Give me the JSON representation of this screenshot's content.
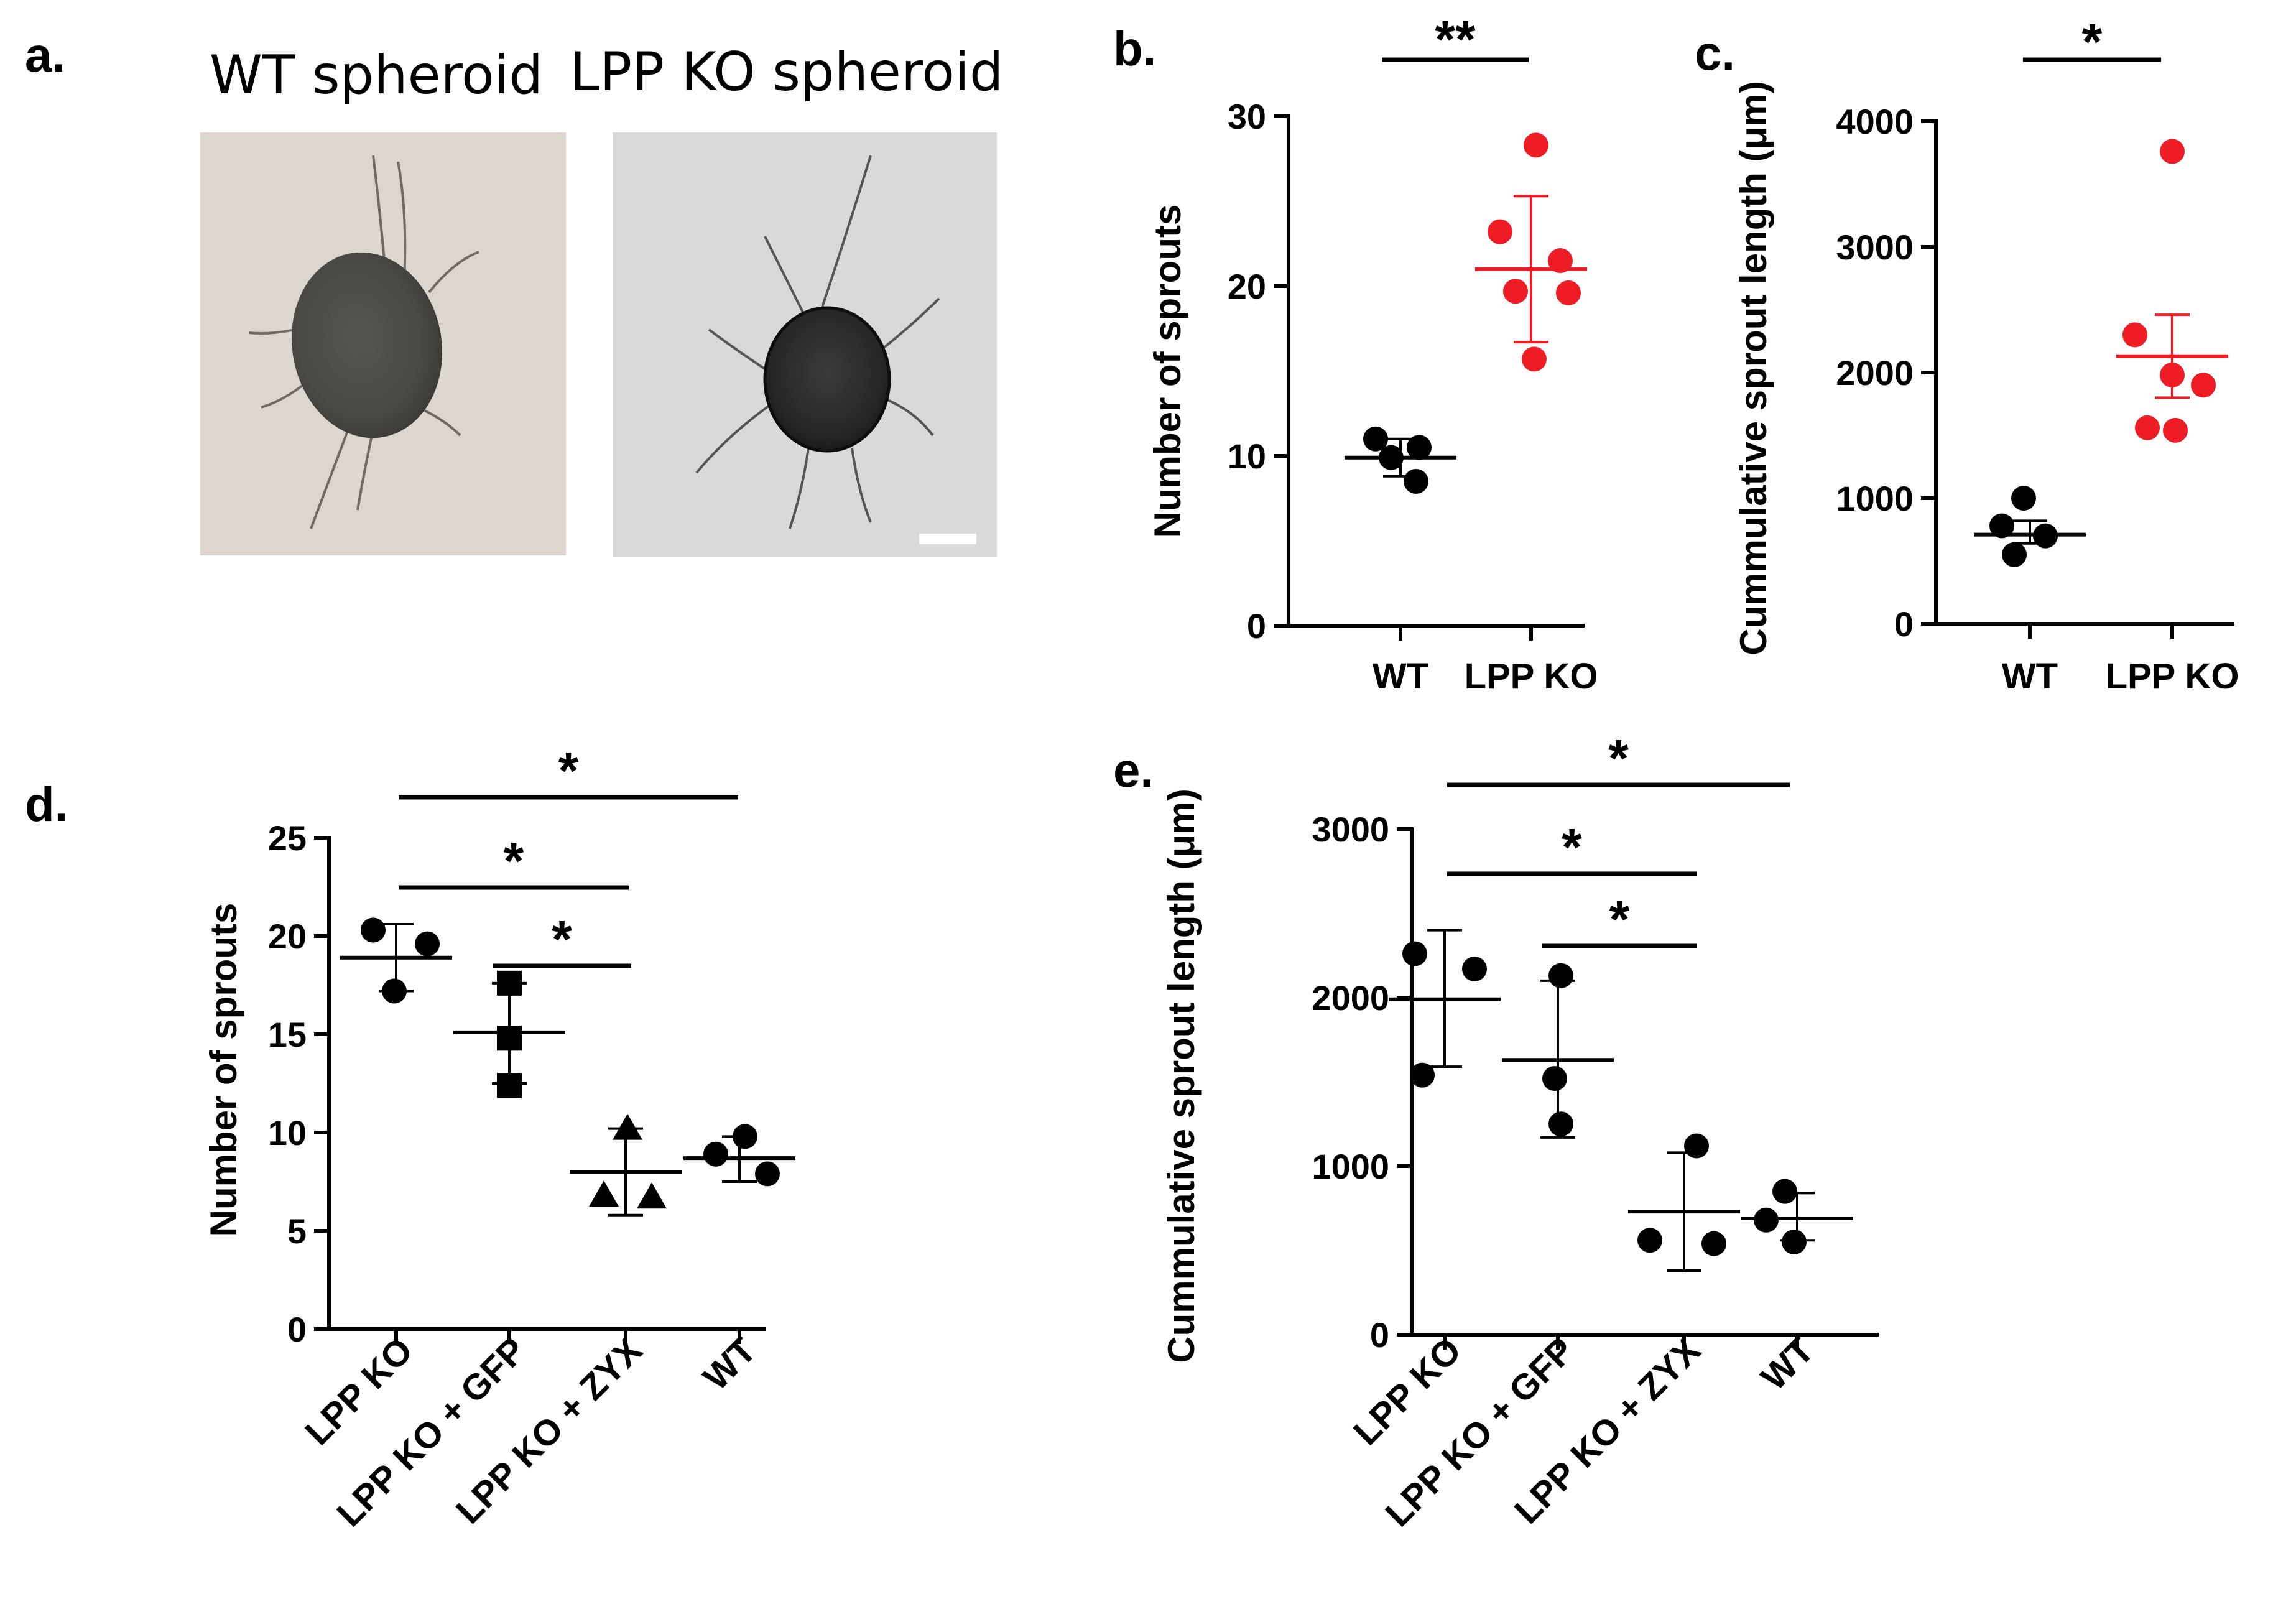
{
  "figure": {
    "panels": [
      {
        "letter": "a."
      },
      {
        "letter": "b."
      },
      {
        "letter": "c."
      },
      {
        "letter": "d."
      },
      {
        "letter": "e."
      }
    ],
    "images": {
      "wt_title": "WT spheroid",
      "ko_title": "LPP KO spheroid"
    }
  },
  "colors": {
    "black": "#000000",
    "red": "#ee1c25"
  },
  "chart_data": [
    {
      "id": "b",
      "type": "scatter",
      "ylabel": "Number of sprouts",
      "ylim": [
        0,
        30
      ],
      "yticks": [
        0,
        10,
        20,
        30
      ],
      "categories": [
        "WT",
        "LPP KO"
      ],
      "series": [
        {
          "category": "WT",
          "color": "#000000",
          "marker": "circle",
          "values": [
            11.0,
            10.5,
            9.9,
            8.5
          ],
          "mean": 9.9,
          "err": [
            8.8,
            11.0
          ]
        },
        {
          "category": "LPP KO",
          "color": "#ee1c25",
          "marker": "circle",
          "values": [
            28.3,
            23.2,
            21.5,
            19.7,
            19.6,
            15.7
          ],
          "mean": 21.0,
          "err": [
            16.7,
            25.3
          ]
        }
      ],
      "significance": [
        {
          "from": 0,
          "to": 1,
          "label": "**"
        }
      ]
    },
    {
      "id": "c",
      "type": "scatter",
      "ylabel": "Cummulative sprout length (μm)",
      "ylim": [
        0,
        4000
      ],
      "yticks": [
        0,
        1000,
        2000,
        3000,
        4000
      ],
      "categories": [
        "WT",
        "LPP KO"
      ],
      "series": [
        {
          "category": "WT",
          "color": "#000000",
          "marker": "circle",
          "values": [
            1000,
            780,
            700,
            550
          ],
          "mean": 710,
          "err": [
            640,
            820
          ]
        },
        {
          "category": "LPP KO",
          "color": "#ee1c25",
          "marker": "circle",
          "values": [
            3760,
            2300,
            1980,
            1900,
            1560,
            1540
          ],
          "mean": 2130,
          "err": [
            1800,
            2460
          ]
        }
      ],
      "significance": [
        {
          "from": 0,
          "to": 1,
          "label": "*"
        }
      ]
    },
    {
      "id": "d",
      "type": "scatter",
      "ylabel": "Number of sprouts",
      "ylim": [
        0,
        25
      ],
      "yticks": [
        0,
        5,
        10,
        15,
        20,
        25
      ],
      "categories": [
        "LPP KO",
        "LPP KO + GFP",
        "LPP KO + ZYX",
        "WT"
      ],
      "series": [
        {
          "category": "LPP KO",
          "color": "#000000",
          "marker": "circle",
          "values": [
            20.3,
            19.6,
            17.2
          ],
          "mean": 18.9,
          "err": [
            17.2,
            20.6
          ]
        },
        {
          "category": "LPP KO + GFP",
          "color": "#000000",
          "marker": "square",
          "values": [
            17.6,
            14.8,
            12.4
          ],
          "mean": 15.1,
          "err": [
            12.5,
            17.6
          ]
        },
        {
          "category": "LPP KO + ZYX",
          "color": "#000000",
          "marker": "triangle",
          "values": [
            10.2,
            6.8,
            6.7
          ],
          "mean": 8.0,
          "err": [
            5.8,
            10.2
          ]
        },
        {
          "category": "WT",
          "color": "#000000",
          "marker": "circle",
          "values": [
            9.8,
            8.9,
            7.9
          ],
          "mean": 8.7,
          "err": [
            7.5,
            9.8
          ]
        }
      ],
      "significance": [
        {
          "from": 0,
          "to": 3,
          "label": "*"
        },
        {
          "from": 0,
          "to": 2,
          "label": "*"
        },
        {
          "from": 1,
          "to": 2,
          "label": "*"
        }
      ]
    },
    {
      "id": "e",
      "type": "scatter",
      "ylabel": "Cummulative sprout length (μm)",
      "ylim": [
        0,
        3000
      ],
      "yticks": [
        0,
        1000,
        2000,
        3000
      ],
      "categories": [
        "LPP KO",
        "LPP KO + GFP",
        "LPP KO + ZYX",
        "WT"
      ],
      "series": [
        {
          "category": "LPP KO",
          "color": "#000000",
          "marker": "circle",
          "values": [
            2260,
            2170,
            1540
          ],
          "mean": 1990,
          "err": [
            1590,
            2400
          ]
        },
        {
          "category": "LPP KO + GFP",
          "color": "#000000",
          "marker": "circle",
          "values": [
            2130,
            1520,
            1250
          ],
          "mean": 1630,
          "err": [
            1170,
            2100
          ]
        },
        {
          "category": "LPP KO + ZYX",
          "color": "#000000",
          "marker": "circle",
          "values": [
            1120,
            560,
            540
          ],
          "mean": 730,
          "err": [
            380,
            1080
          ]
        },
        {
          "category": "WT",
          "color": "#000000",
          "marker": "circle",
          "values": [
            850,
            680,
            550
          ],
          "mean": 690,
          "err": [
            560,
            840
          ]
        }
      ],
      "significance": [
        {
          "from": 0,
          "to": 3,
          "label": "*"
        },
        {
          "from": 0,
          "to": 2,
          "label": "*"
        },
        {
          "from": 1,
          "to": 2,
          "label": "*"
        }
      ]
    }
  ]
}
